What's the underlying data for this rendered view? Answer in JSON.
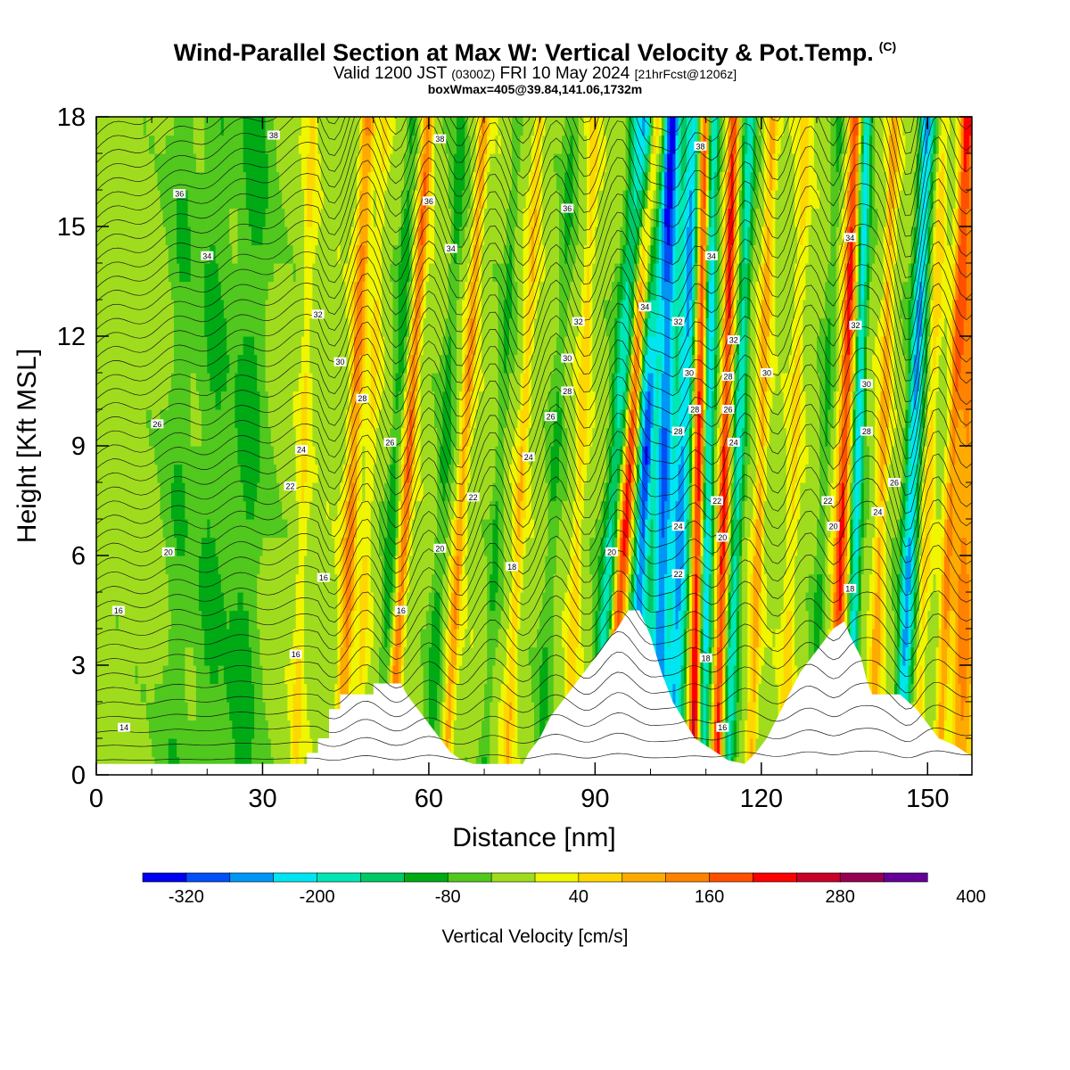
{
  "header": {
    "title": "Wind-Parallel Section at Max W: Vertical Velocity & Pot.Temp.",
    "copyright": "(C)",
    "valid_prefix": "Valid 1200 JST",
    "valid_utc": "(0300Z)",
    "valid_date": "FRI 10 May 2024",
    "forecast": "[21hrFcst@1206z]",
    "box_info": "boxWmax=405@39.84,141.06,1732m"
  },
  "chart_data": {
    "type": "heatmap",
    "xlabel": "Distance [nm]",
    "ylabel": "Height [Kft MSL]",
    "xlim": [
      0,
      158
    ],
    "ylim": [
      0,
      18
    ],
    "x_ticks": [
      0,
      30,
      60,
      90,
      120,
      150
    ],
    "y_ticks": [
      0,
      3,
      6,
      9,
      12,
      15,
      18
    ],
    "colorbar": {
      "title": "Vertical Velocity [cm/s]",
      "tick_labels": [
        -320,
        -200,
        -80,
        40,
        160,
        280,
        400
      ],
      "colors": [
        "#0000f0",
        "#0050f5",
        "#0096f5",
        "#00e6f0",
        "#00e6b4",
        "#00c864",
        "#00aa14",
        "#50c81e",
        "#a0dc1e",
        "#f0f500",
        "#ffd700",
        "#ffaa00",
        "#ff8200",
        "#ff5000",
        "#ff0000",
        "#c80028",
        "#960050",
        "#640096"
      ]
    },
    "terrain_kft": [
      [
        0,
        0.3
      ],
      [
        38,
        0.3
      ],
      [
        38,
        0.6
      ],
      [
        40,
        0.6
      ],
      [
        40,
        1.0
      ],
      [
        42,
        1.0
      ],
      [
        42,
        1.8
      ],
      [
        44,
        1.8
      ],
      [
        44,
        2.2
      ],
      [
        50,
        2.2
      ],
      [
        50,
        2.5
      ],
      [
        55,
        2.5
      ],
      [
        56,
        2.2
      ],
      [
        58,
        1.8
      ],
      [
        60,
        1.4
      ],
      [
        62,
        1.0
      ],
      [
        64,
        0.6
      ],
      [
        66,
        0.4
      ],
      [
        68,
        0.3
      ],
      [
        77,
        0.3
      ],
      [
        78,
        0.6
      ],
      [
        80,
        1.0
      ],
      [
        82,
        1.6
      ],
      [
        84,
        2.0
      ],
      [
        86,
        2.4
      ],
      [
        88,
        2.8
      ],
      [
        90,
        3.2
      ],
      [
        92,
        3.6
      ],
      [
        94,
        4.0
      ],
      [
        96,
        4.5
      ],
      [
        98,
        4.5
      ],
      [
        100,
        3.8
      ],
      [
        102,
        2.8
      ],
      [
        104,
        2.0
      ],
      [
        106,
        1.5
      ],
      [
        108,
        1.0
      ],
      [
        110,
        0.8
      ],
      [
        112,
        0.6
      ],
      [
        114,
        0.4
      ],
      [
        117,
        0.3
      ],
      [
        119,
        0.6
      ],
      [
        121,
        1.0
      ],
      [
        123,
        1.6
      ],
      [
        125,
        2.2
      ],
      [
        127,
        2.8
      ],
      [
        129,
        3.2
      ],
      [
        131,
        3.6
      ],
      [
        133,
        4.0
      ],
      [
        135,
        4.2
      ],
      [
        136,
        3.8
      ],
      [
        138,
        3.2
      ],
      [
        139,
        2.6
      ],
      [
        140,
        2.2
      ],
      [
        145,
        2.2
      ],
      [
        148,
        1.8
      ],
      [
        150,
        1.4
      ],
      [
        152,
        1.0
      ],
      [
        155,
        0.8
      ],
      [
        158,
        0.5
      ]
    ],
    "theta_contour_labels": [
      {
        "value": "38",
        "x": 32,
        "y": 17.5
      },
      {
        "value": "38",
        "x": 62,
        "y": 17.4
      },
      {
        "value": "36",
        "x": 15,
        "y": 15.9
      },
      {
        "value": "36",
        "x": 60,
        "y": 15.7
      },
      {
        "value": "36",
        "x": 85,
        "y": 15.5
      },
      {
        "value": "34",
        "x": 20,
        "y": 14.2
      },
      {
        "value": "34",
        "x": 64,
        "y": 14.4
      },
      {
        "value": "34",
        "x": 99,
        "y": 12.8
      },
      {
        "value": "32",
        "x": 40,
        "y": 12.6
      },
      {
        "value": "32",
        "x": 87,
        "y": 12.4
      },
      {
        "value": "30",
        "x": 44,
        "y": 11.3
      },
      {
        "value": "30",
        "x": 85,
        "y": 11.4
      },
      {
        "value": "28",
        "x": 48,
        "y": 10.3
      },
      {
        "value": "28",
        "x": 85,
        "y": 10.5
      },
      {
        "value": "26",
        "x": 11,
        "y": 9.6
      },
      {
        "value": "26",
        "x": 53,
        "y": 9.1
      },
      {
        "value": "26",
        "x": 82,
        "y": 9.8
      },
      {
        "value": "24",
        "x": 37,
        "y": 8.9
      },
      {
        "value": "24",
        "x": 78,
        "y": 8.7
      },
      {
        "value": "22",
        "x": 35,
        "y": 7.9
      },
      {
        "value": "22",
        "x": 68,
        "y": 7.6
      },
      {
        "value": "20",
        "x": 13,
        "y": 6.1
      },
      {
        "value": "20",
        "x": 62,
        "y": 6.2
      },
      {
        "value": "20",
        "x": 93,
        "y": 6.1
      },
      {
        "value": "18",
        "x": 75,
        "y": 5.7
      },
      {
        "value": "16",
        "x": 41,
        "y": 5.4
      },
      {
        "value": "16",
        "x": 4,
        "y": 4.5
      },
      {
        "value": "16",
        "x": 55,
        "y": 4.5
      },
      {
        "value": "16",
        "x": 36,
        "y": 3.3
      },
      {
        "value": "14",
        "x": 5,
        "y": 1.3
      },
      {
        "value": "38",
        "x": 109,
        "y": 17.2
      },
      {
        "value": "34",
        "x": 111,
        "y": 14.2
      },
      {
        "value": "32",
        "x": 105,
        "y": 12.4
      },
      {
        "value": "32",
        "x": 115,
        "y": 11.9
      },
      {
        "value": "30",
        "x": 107,
        "y": 11.0
      },
      {
        "value": "30",
        "x": 121,
        "y": 11.0
      },
      {
        "value": "28",
        "x": 108,
        "y": 10.0
      },
      {
        "value": "28",
        "x": 114,
        "y": 10.9
      },
      {
        "value": "28",
        "x": 105,
        "y": 9.4
      },
      {
        "value": "26",
        "x": 114,
        "y": 10.0
      },
      {
        "value": "24",
        "x": 115,
        "y": 9.1
      },
      {
        "value": "22",
        "x": 112,
        "y": 7.5
      },
      {
        "value": "20",
        "x": 113,
        "y": 6.5
      },
      {
        "value": "24",
        "x": 105,
        "y": 6.8
      },
      {
        "value": "22",
        "x": 105,
        "y": 5.5
      },
      {
        "value": "18",
        "x": 110,
        "y": 3.2
      },
      {
        "value": "16",
        "x": 113,
        "y": 1.3
      },
      {
        "value": "34",
        "x": 136,
        "y": 14.7
      },
      {
        "value": "32",
        "x": 137,
        "y": 12.3
      },
      {
        "value": "30",
        "x": 139,
        "y": 10.7
      },
      {
        "value": "28",
        "x": 139,
        "y": 9.4
      },
      {
        "value": "26",
        "x": 144,
        "y": 8.0
      },
      {
        "value": "24",
        "x": 141,
        "y": 7.2
      },
      {
        "value": "22",
        "x": 132,
        "y": 7.5
      },
      {
        "value": "20",
        "x": 133,
        "y": 6.8
      },
      {
        "value": "18",
        "x": 136,
        "y": 5.1
      }
    ]
  }
}
